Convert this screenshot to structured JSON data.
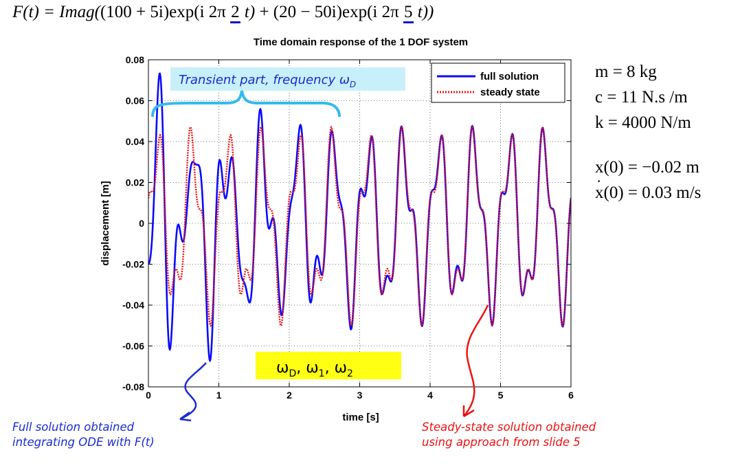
{
  "equation": {
    "lhs": "F(t) = Imag(",
    "term1_coef": "(100 + 5i)",
    "exp1_pre": "exp(i 2π ",
    "freq1": "2",
    "exp1_post": " t)",
    "plus": " + ",
    "term2_coef": "(20 − 50i)",
    "exp2_pre": "exp(i 2π ",
    "freq2": "5",
    "exp2_post": " t))"
  },
  "parameters": {
    "mass": "m = 8 kg",
    "damping": "c = 11 N.s /m",
    "stiffness": "k = 4000 N/m",
    "x0": "x(0) = −0.02 m",
    "v0_symbol": "x",
    "v0_rest": "(0) = 0.03 m/s"
  },
  "annotations": {
    "transient_label": "Transient part, frequency ω",
    "transient_sub": "D",
    "omega_base": "ω",
    "omega_subs": [
      "D",
      "1",
      "2"
    ],
    "full_note_line1": "Full solution obtained",
    "full_note_line2": "integrating ODE with F(t)",
    "steady_note_line1": "Steady-state solution obtained",
    "steady_note_line2": "using approach from slide 5"
  },
  "colors": {
    "full": "#0a0aff",
    "steady": "#ee1111",
    "transient_bg": "#c8f0fa",
    "brace": "#33bbee",
    "omega_bg": "#ffff14",
    "arrow_blue": "#1a2ad0",
    "arrow_red": "#ee1111"
  },
  "chart_data": {
    "type": "line",
    "title": "Time domain response of the 1 DOF system",
    "xlabel": "time [s]",
    "ylabel": "displacement [m]",
    "xlim": [
      0,
      6
    ],
    "ylim": [
      -0.08,
      0.08
    ],
    "xticks": [
      0,
      1,
      2,
      3,
      4,
      5,
      6
    ],
    "xtick_labels": [
      "0",
      "1",
      "2",
      "3",
      "4",
      "5",
      "6"
    ],
    "yticks": [
      -0.08,
      -0.06,
      -0.04,
      -0.02,
      0,
      0.02,
      0.04,
      0.06,
      0.08
    ],
    "ytick_labels": [
      "-0.08",
      "-0.06",
      "-0.04",
      "-0.02",
      "0",
      "0.02",
      "0.04",
      "0.06",
      "0.08"
    ],
    "grid": true,
    "legend_position": "top-right",
    "system": {
      "m": 8,
      "c": 11,
      "k": 4000,
      "x0": -0.02,
      "v0": 0.03
    },
    "forcing": {
      "A1": [
        100,
        5
      ],
      "f1_hz": 2,
      "A2": [
        20,
        -50
      ],
      "f2_hz": 5
    },
    "series": [
      {
        "name": "full solution",
        "style": "solid",
        "color": "#0a0aff"
      },
      {
        "name": "steady state",
        "style": "dotted",
        "color": "#ee1111"
      }
    ]
  }
}
